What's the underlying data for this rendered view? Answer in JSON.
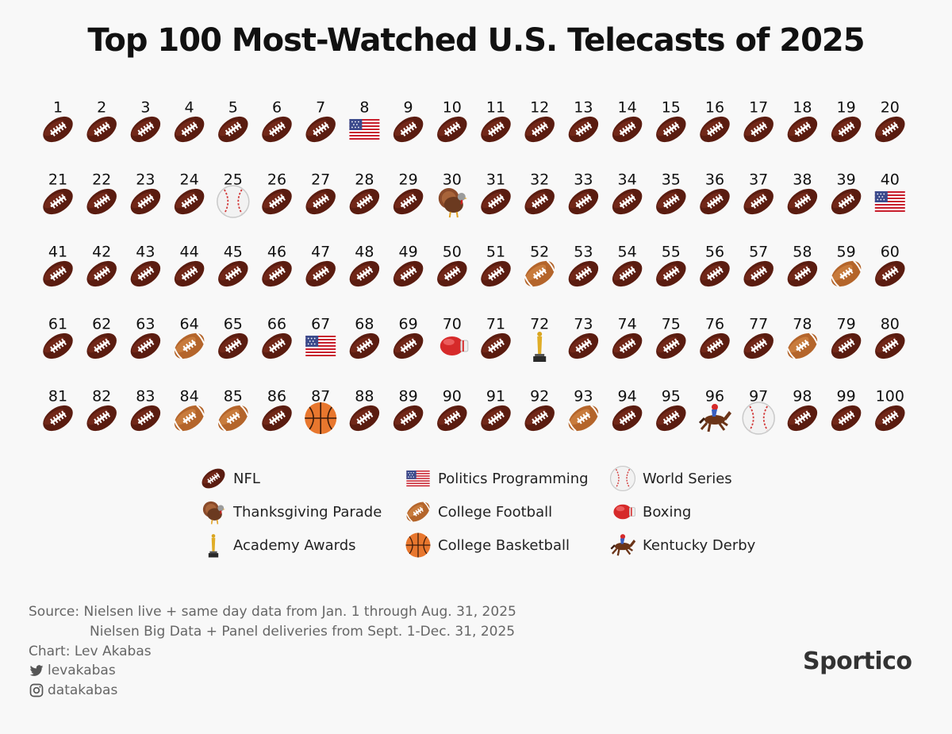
{
  "title": "Top 100 Most-Watched U.S. Telecasts of 2025",
  "chart_data": {
    "type": "table",
    "title": "Top 100 Most-Watched U.S. Telecasts of 2025",
    "ranks": [
      1,
      2,
      3,
      4,
      5,
      6,
      7,
      8,
      9,
      10,
      11,
      12,
      13,
      14,
      15,
      16,
      17,
      18,
      19,
      20,
      21,
      22,
      23,
      24,
      25,
      26,
      27,
      28,
      29,
      30,
      31,
      32,
      33,
      34,
      35,
      36,
      37,
      38,
      39,
      40,
      41,
      42,
      43,
      44,
      45,
      46,
      47,
      48,
      49,
      50,
      51,
      52,
      53,
      54,
      55,
      56,
      57,
      58,
      59,
      60,
      61,
      62,
      63,
      64,
      65,
      66,
      67,
      68,
      69,
      70,
      71,
      72,
      73,
      74,
      75,
      76,
      77,
      78,
      79,
      80,
      81,
      82,
      83,
      84,
      85,
      86,
      87,
      88,
      89,
      90,
      91,
      92,
      93,
      94,
      95,
      96,
      97,
      98,
      99,
      100
    ],
    "categories": [
      "nfl",
      "nfl",
      "nfl",
      "nfl",
      "nfl",
      "nfl",
      "nfl",
      "politics",
      "nfl",
      "nfl",
      "nfl",
      "nfl",
      "nfl",
      "nfl",
      "nfl",
      "nfl",
      "nfl",
      "nfl",
      "nfl",
      "nfl",
      "nfl",
      "nfl",
      "nfl",
      "nfl",
      "world_series",
      "nfl",
      "nfl",
      "nfl",
      "nfl",
      "thanksgiving",
      "nfl",
      "nfl",
      "nfl",
      "nfl",
      "nfl",
      "nfl",
      "nfl",
      "nfl",
      "nfl",
      "politics",
      "nfl",
      "nfl",
      "nfl",
      "nfl",
      "nfl",
      "nfl",
      "nfl",
      "nfl",
      "nfl",
      "nfl",
      "nfl",
      "college_football",
      "nfl",
      "nfl",
      "nfl",
      "nfl",
      "nfl",
      "nfl",
      "college_football",
      "nfl",
      "nfl",
      "nfl",
      "nfl",
      "college_football",
      "nfl",
      "nfl",
      "politics",
      "nfl",
      "nfl",
      "boxing",
      "nfl",
      "academy_awards",
      "nfl",
      "nfl",
      "nfl",
      "nfl",
      "nfl",
      "college_football",
      "nfl",
      "nfl",
      "nfl",
      "nfl",
      "nfl",
      "college_football",
      "college_football",
      "nfl",
      "college_basketball",
      "nfl",
      "nfl",
      "nfl",
      "nfl",
      "nfl",
      "college_football",
      "nfl",
      "nfl",
      "kentucky_derby",
      "world_series",
      "nfl",
      "nfl",
      "nfl"
    ],
    "legend": [
      {
        "key": "nfl",
        "label": "NFL"
      },
      {
        "key": "politics",
        "label": "Politics Programming"
      },
      {
        "key": "world_series",
        "label": "World Series"
      },
      {
        "key": "thanksgiving",
        "label": "Thanksgiving Parade"
      },
      {
        "key": "college_football",
        "label": "College Football"
      },
      {
        "key": "boxing",
        "label": "Boxing"
      },
      {
        "key": "academy_awards",
        "label": "Academy Awards"
      },
      {
        "key": "college_basketball",
        "label": "College Basketball"
      },
      {
        "key": "kentucky_derby",
        "label": "Kentucky Derby"
      }
    ]
  },
  "footer": {
    "source_line1": "Source: Nielsen live + same day data from Jan. 1 through Aug. 31, 2025",
    "source_line2": "Nielsen Big Data + Panel deliveries from Sept. 1-Dec. 31, 2025",
    "chart_credit": "Chart: Lev Akabas",
    "twitter": "levakabas",
    "instagram": "datakabas",
    "brand": "Sportico"
  },
  "colors": {
    "nfl": "#5a1c10",
    "college_football": "#b4652b",
    "background": "#f8f8f8"
  }
}
